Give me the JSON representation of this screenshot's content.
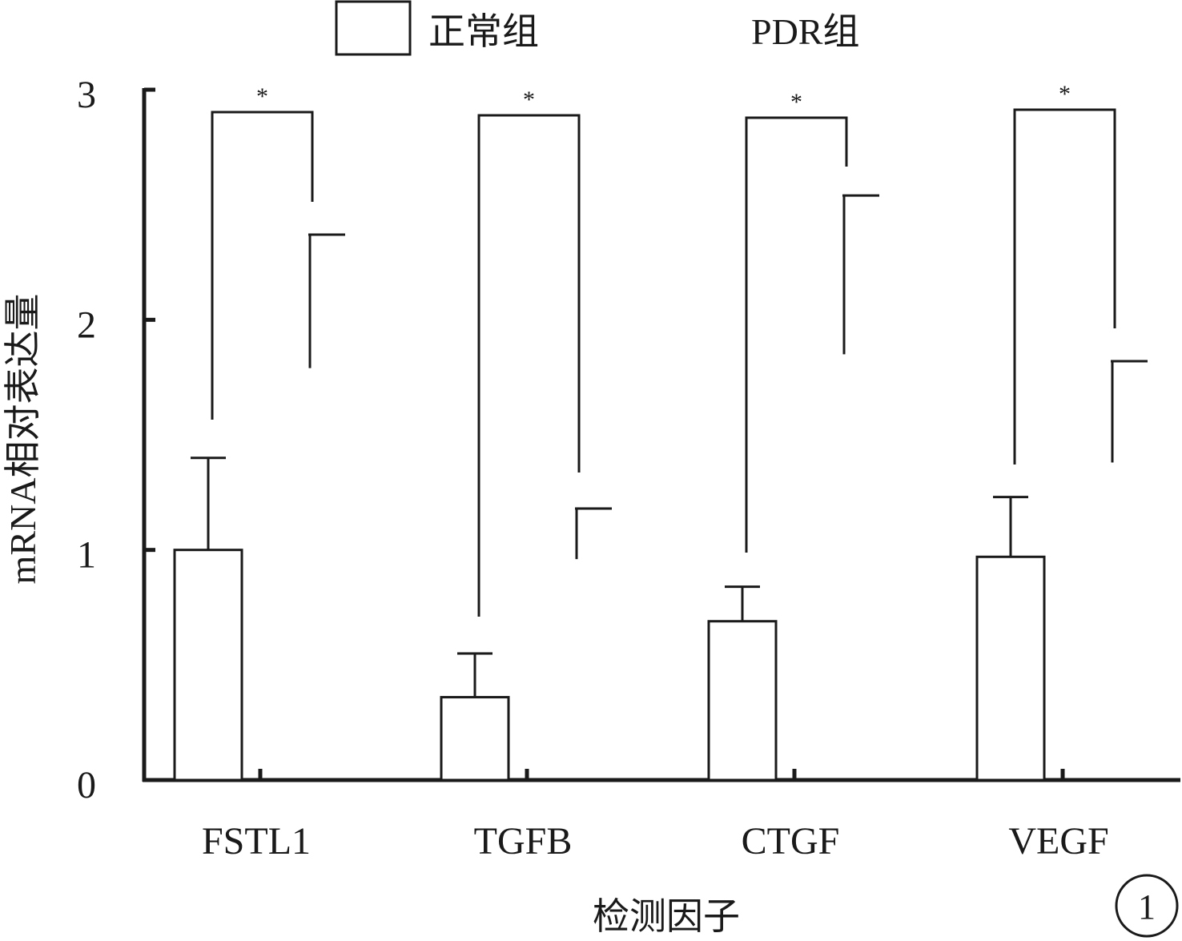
{
  "chart_data": {
    "type": "bar",
    "title": "",
    "xlabel": "检测因子",
    "ylabel": "mRNA相对表达量",
    "ylim": [
      0,
      3
    ],
    "yticks": [
      "0",
      "1",
      "2",
      "3"
    ],
    "categories": [
      "FSTL1",
      "TGFB",
      "CTGF",
      "VEGF"
    ],
    "series": [
      {
        "name": "正常组",
        "values": [
          1.0,
          0.36,
          0.69,
          0.97
        ],
        "error": [
          0.4,
          0.19,
          0.15,
          0.26
        ],
        "fill": "#ffffff",
        "stroke": "#1a1a1a"
      },
      {
        "name": "PDR组",
        "values": [
          1.79,
          0.96,
          1.85,
          1.38
        ],
        "error": [
          0.58,
          0.22,
          0.69,
          0.44
        ],
        "fill": "none",
        "stroke": "#1a1a1a"
      }
    ],
    "significance": [
      "*",
      "*",
      "*",
      "*"
    ],
    "legend_position": "top",
    "grid": false
  },
  "panel_label": "1"
}
